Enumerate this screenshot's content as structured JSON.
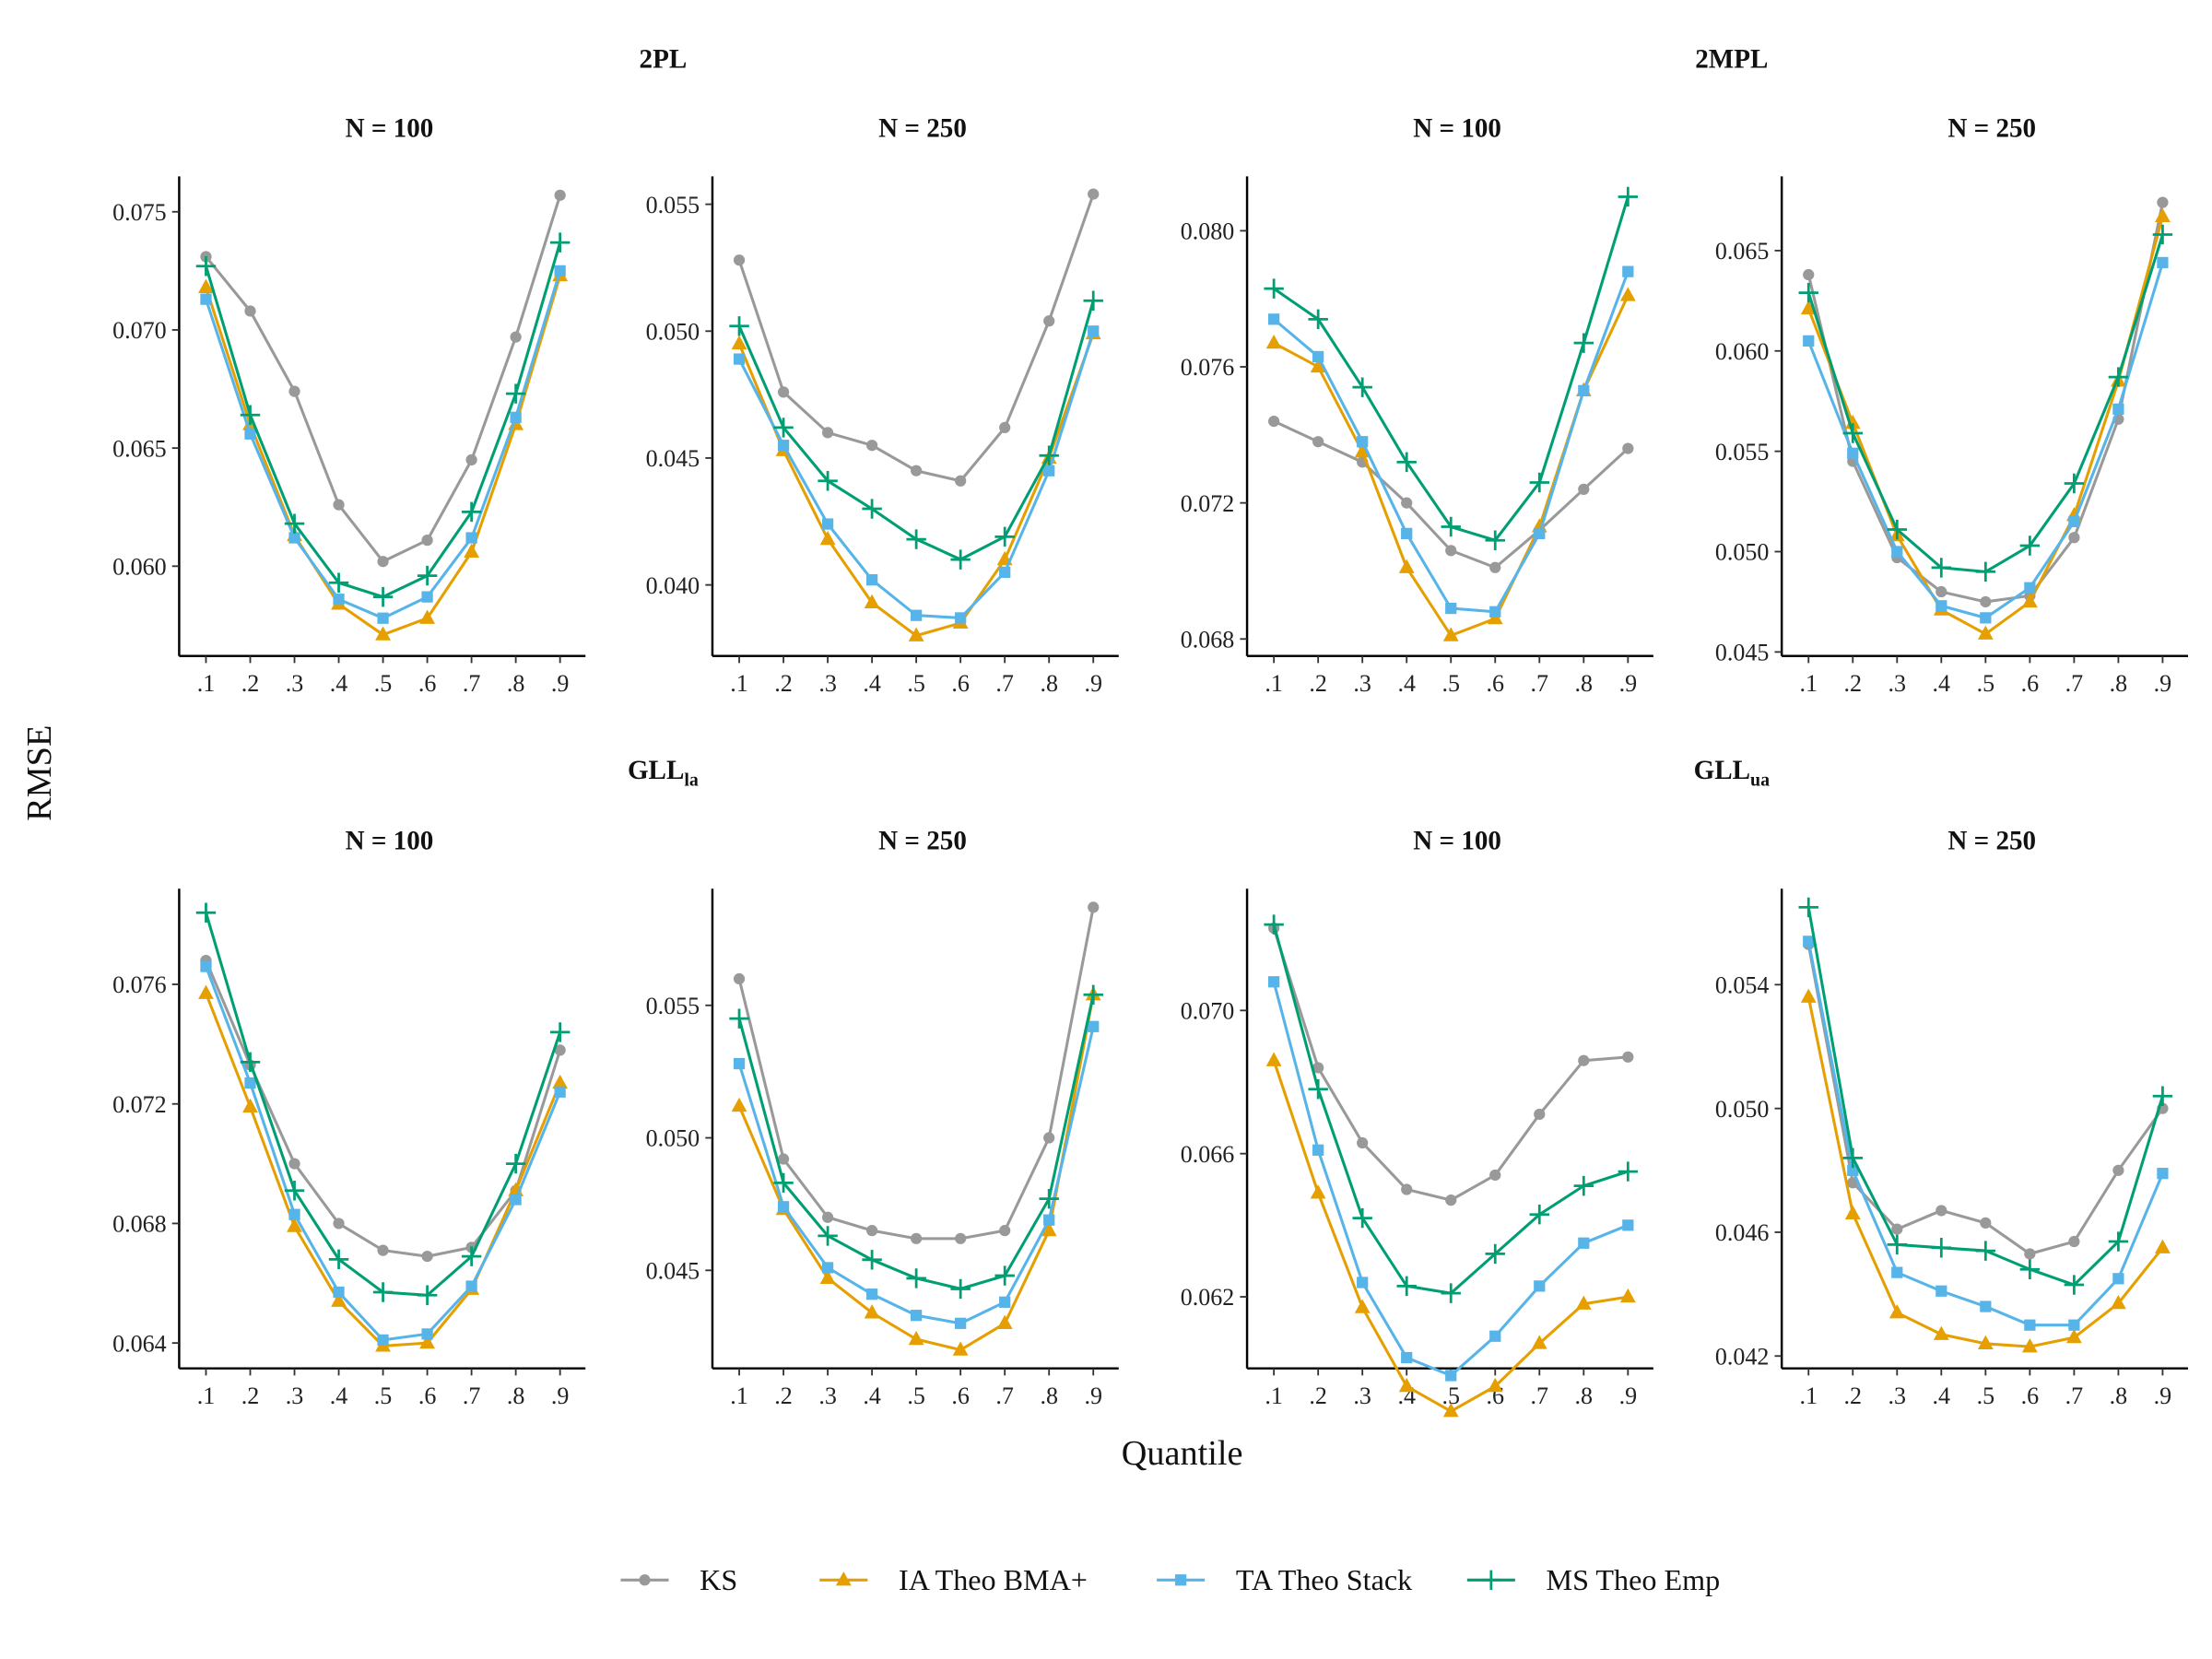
{
  "chart_data": {
    "type": "line",
    "ylabel": "RMSE",
    "xlabel": "Quantile",
    "x": [
      ".1",
      ".2",
      ".3",
      ".4",
      ".5",
      ".6",
      ".7",
      ".8",
      ".9"
    ],
    "legend_position": "bottom",
    "series_styles": [
      {
        "name": "KS",
        "color": "#999999",
        "marker": "circle"
      },
      {
        "name": "IA Theo BMA+",
        "color": "#E69F00",
        "marker": "triangle"
      },
      {
        "name": "TA Theo Stack",
        "color": "#56B4E9",
        "marker": "square"
      },
      {
        "name": "MS Theo Emp",
        "color": "#009E73",
        "marker": "plus"
      }
    ],
    "groups": [
      {
        "title": "2PL",
        "sub": ""
      },
      {
        "title": "2MPL",
        "sub": ""
      },
      {
        "title": "GLL",
        "sub": "la"
      },
      {
        "title": "GLL",
        "sub": "ua"
      }
    ],
    "panels": [
      {
        "group": 0,
        "title": "N = 100",
        "ylim": [
          0.0562,
          0.0765
        ],
        "yticks": [
          "0.060",
          "0.065",
          "0.070",
          "0.075"
        ],
        "series": [
          [
            0.0731,
            0.0708,
            0.0674,
            0.0626,
            0.0602,
            0.0611,
            0.0645,
            0.0697,
            0.0757
          ],
          [
            0.0718,
            0.066,
            0.0613,
            0.0584,
            0.0571,
            0.0578,
            0.0606,
            0.066,
            0.0723
          ],
          [
            0.0713,
            0.0656,
            0.0612,
            0.0586,
            0.0578,
            0.0587,
            0.0612,
            0.0663,
            0.0725
          ],
          [
            0.0727,
            0.0664,
            0.0618,
            0.0593,
            0.0587,
            0.0596,
            0.0623,
            0.0673,
            0.0737
          ]
        ]
      },
      {
        "group": 0,
        "title": "N = 250",
        "ylim": [
          0.0372,
          0.0561
        ],
        "yticks": [
          "0.040",
          "0.045",
          "0.050",
          "0.055"
        ],
        "series": [
          [
            0.0528,
            0.0476,
            0.046,
            0.0455,
            0.0445,
            0.0441,
            0.0462,
            0.0504,
            0.0554
          ],
          [
            0.0495,
            0.0453,
            0.0418,
            0.0393,
            0.038,
            0.0385,
            0.041,
            0.045,
            0.0499
          ],
          [
            0.0489,
            0.0455,
            0.0424,
            0.0402,
            0.0388,
            0.0387,
            0.0405,
            0.0445,
            0.05
          ],
          [
            0.0502,
            0.0462,
            0.0441,
            0.043,
            0.0418,
            0.041,
            0.0419,
            0.0451,
            0.0512
          ]
        ]
      },
      {
        "group": 1,
        "title": "N = 100",
        "ylim": [
          0.0675,
          0.0816
        ],
        "yticks": [
          "0.068",
          "0.072",
          "0.076",
          "0.080"
        ],
        "series": [
          [
            0.0744,
            0.0738,
            0.0732,
            0.072,
            0.0706,
            0.0701,
            0.0712,
            0.0724,
            0.0736
          ],
          [
            0.0767,
            0.076,
            0.0735,
            0.0701,
            0.0681,
            0.0686,
            0.0713,
            0.0753,
            0.0781
          ],
          [
            0.0774,
            0.0763,
            0.0738,
            0.0711,
            0.0689,
            0.0688,
            0.0711,
            0.0753,
            0.0788
          ],
          [
            0.0783,
            0.0774,
            0.0754,
            0.0732,
            0.0713,
            0.0709,
            0.0726,
            0.0767,
            0.081
          ]
        ]
      },
      {
        "group": 1,
        "title": "N = 250",
        "ylim": [
          0.0448,
          0.0687
        ],
        "yticks": [
          "0.045",
          "0.050",
          "0.055",
          "0.060",
          "0.065"
        ],
        "series": [
          [
            0.0638,
            0.0545,
            0.0497,
            0.048,
            0.0475,
            0.0478,
            0.0507,
            0.0566,
            0.0674
          ],
          [
            0.0621,
            0.0564,
            0.0508,
            0.0471,
            0.0459,
            0.0475,
            0.0518,
            0.0585,
            0.0667
          ],
          [
            0.0605,
            0.0549,
            0.05,
            0.0473,
            0.0467,
            0.0482,
            0.0515,
            0.0571,
            0.0644
          ],
          [
            0.0629,
            0.0559,
            0.0511,
            0.0492,
            0.049,
            0.0503,
            0.0534,
            0.0587,
            0.0658
          ]
        ]
      },
      {
        "group": 2,
        "title": "N = 100",
        "ylim": [
          0.06315,
          0.0792
        ],
        "yticks": [
          "0.064",
          "0.068",
          "0.072",
          "0.076"
        ],
        "series": [
          [
            0.0768,
            0.0733,
            0.07,
            0.068,
            0.0671,
            0.0669,
            0.0672,
            0.0691,
            0.0738
          ],
          [
            0.0757,
            0.0719,
            0.0679,
            0.0654,
            0.0639,
            0.064,
            0.0658,
            0.0691,
            0.0727
          ],
          [
            0.0766,
            0.0727,
            0.0683,
            0.0657,
            0.0641,
            0.0643,
            0.0659,
            0.0688,
            0.0724
          ],
          [
            0.0784,
            0.0734,
            0.0691,
            0.0668,
            0.0657,
            0.0656,
            0.0669,
            0.07,
            0.0744
          ]
        ]
      },
      {
        "group": 2,
        "title": "N = 250",
        "ylim": [
          0.0413,
          0.0594
        ],
        "yticks": [
          "0.045",
          "0.050",
          "0.055"
        ],
        "series": [
          [
            0.056,
            0.0492,
            0.047,
            0.0465,
            0.0462,
            0.0462,
            0.0465,
            0.05,
            0.0587
          ],
          [
            0.0512,
            0.0473,
            0.0447,
            0.0434,
            0.0424,
            0.042,
            0.043,
            0.0465,
            0.0554
          ],
          [
            0.0528,
            0.0474,
            0.0451,
            0.0441,
            0.0433,
            0.043,
            0.0438,
            0.0469,
            0.0542
          ],
          [
            0.0545,
            0.0483,
            0.0463,
            0.0454,
            0.0447,
            0.0443,
            0.0448,
            0.0477,
            0.0554
          ]
        ]
      },
      {
        "group": 3,
        "title": "N = 100",
        "ylim": [
          0.06,
          0.0734
        ],
        "yticks": [
          "0.062",
          "0.066",
          "0.070"
        ],
        "series": [
          [
            0.0723,
            0.0684,
            0.0663,
            0.065,
            0.0647,
            0.0654,
            0.0671,
            0.0686,
            0.0687
          ],
          [
            0.0686,
            0.0649,
            0.0617,
            0.0595,
            0.0588,
            0.0595,
            0.0607,
            0.0618,
            0.062
          ],
          [
            0.0708,
            0.0661,
            0.0624,
            0.0603,
            0.0598,
            0.0609,
            0.0623,
            0.0635,
            0.064
          ],
          [
            0.0724,
            0.0678,
            0.0642,
            0.0623,
            0.0621,
            0.0632,
            0.0643,
            0.0651,
            0.0655
          ]
        ]
      },
      {
        "group": 3,
        "title": "N = 250",
        "ylim": [
          0.0416,
          0.0571
        ],
        "yticks": [
          "0.042",
          "0.046",
          "0.050",
          "0.054"
        ],
        "series": [
          [
            0.0553,
            0.0476,
            0.0461,
            0.0467,
            0.0463,
            0.0453,
            0.0457,
            0.048,
            0.05
          ],
          [
            0.0536,
            0.0466,
            0.0434,
            0.0427,
            0.0424,
            0.0423,
            0.0426,
            0.0437,
            0.0455
          ],
          [
            0.0554,
            0.048,
            0.0447,
            0.0441,
            0.0436,
            0.043,
            0.043,
            0.0445,
            0.0479
          ],
          [
            0.0565,
            0.0484,
            0.0456,
            0.0455,
            0.0454,
            0.0448,
            0.0443,
            0.0457,
            0.0504
          ]
        ]
      }
    ]
  }
}
